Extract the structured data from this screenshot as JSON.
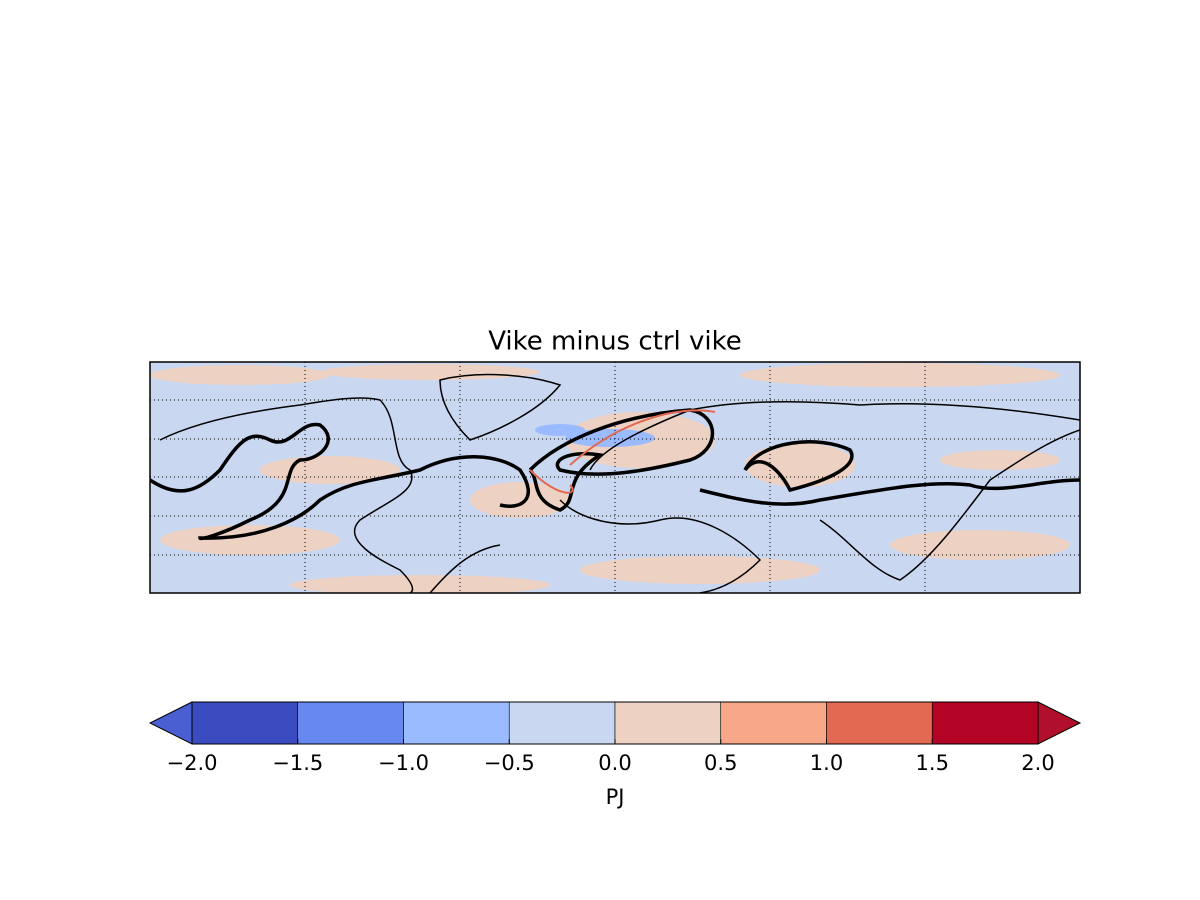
{
  "title": "Vike minus ctrl vike",
  "colorbar": {
    "label": "PJ",
    "extend": "both",
    "ticks": [
      {
        "value": -2.0,
        "label": "−2.0"
      },
      {
        "value": -1.5,
        "label": "−1.5"
      },
      {
        "value": -1.0,
        "label": "−1.0"
      },
      {
        "value": -0.5,
        "label": "−0.5"
      },
      {
        "value": 0.0,
        "label": "0.0"
      },
      {
        "value": 0.5,
        "label": "0.5"
      },
      {
        "value": 1.0,
        "label": "1.0"
      },
      {
        "value": 1.5,
        "label": "1.5"
      },
      {
        "value": 2.0,
        "label": "2.0"
      }
    ],
    "colors": [
      "#3b4cc0",
      "#6788ee",
      "#9abbff",
      "#c9d7f0",
      "#edd1c2",
      "#f7a889",
      "#e26952",
      "#b40426"
    ],
    "under_color": "#4a5fd1",
    "over_color": "#b0102b"
  }
}
